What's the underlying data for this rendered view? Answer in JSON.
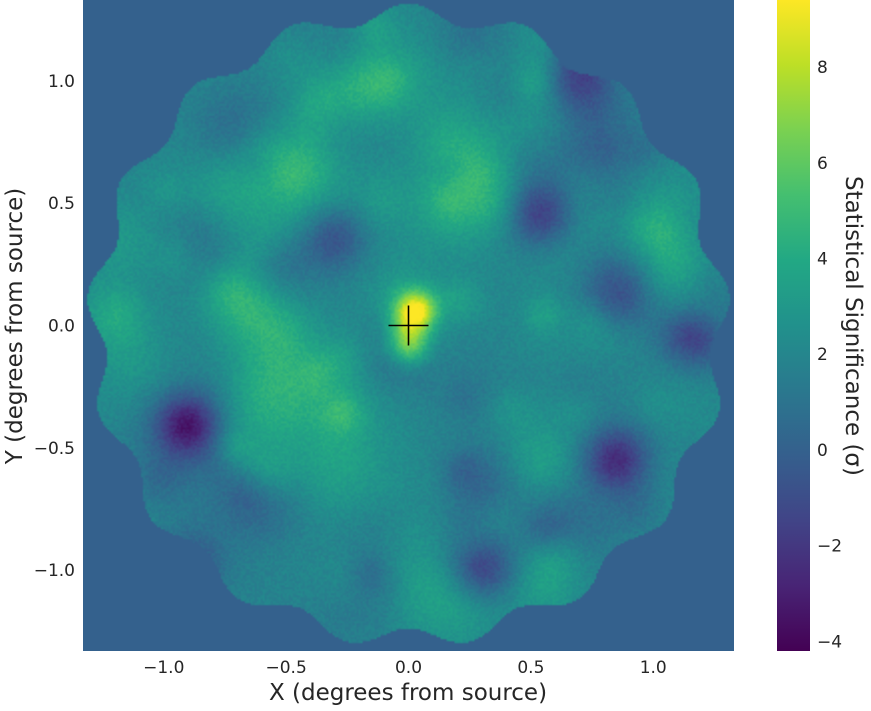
{
  "chart_data": {
    "type": "heatmap",
    "title": "",
    "xlabel": "X (degrees from source)",
    "ylabel": "Y (degrees from source)",
    "xlim": [
      -1.33,
      1.33
    ],
    "ylim": [
      -1.33,
      1.33
    ],
    "x_ticks": [
      -1.0,
      -0.5,
      0.0,
      0.5,
      1.0
    ],
    "x_tick_labels": [
      "−1.0",
      "−0.5",
      "0.0",
      "0.5",
      "1.0"
    ],
    "y_ticks": [
      1.0,
      0.5,
      0.0,
      -0.5,
      -1.0
    ],
    "y_tick_labels": [
      "1.0",
      "0.5",
      "0.0",
      "−0.5",
      "−1.0"
    ],
    "grid": false,
    "colormap": "viridis",
    "background_value": 0,
    "colorbar": {
      "label": "Statistical Significance (σ)",
      "range": [
        -4.2,
        9.4
      ],
      "ticks": [
        8,
        6,
        4,
        2,
        0,
        -2,
        -4
      ],
      "tick_labels": [
        "8",
        "6",
        "4",
        "2",
        "0",
        "−2",
        "−4"
      ]
    },
    "field_of_view": {
      "center": [
        0.0,
        0.0
      ],
      "radius_deg": 1.33,
      "typical_significance": 2
    },
    "source_marker": {
      "x": 0.0,
      "y": 0.0,
      "shape": "plus",
      "color": "#000000"
    },
    "features": [
      {
        "kind": "peak",
        "x": 0.03,
        "y": 0.06,
        "sigma": 9.2
      },
      {
        "kind": "peak",
        "x": 0.0,
        "y": -0.08,
        "sigma": 7.2
      },
      {
        "kind": "hotspot",
        "x": 1.0,
        "y": 0.4,
        "sigma": 4.5
      },
      {
        "kind": "hotspot",
        "x": -1.2,
        "y": 0.05,
        "sigma": 4.2
      },
      {
        "kind": "hotspot",
        "x": 0.6,
        "y": -0.95,
        "sigma": 4.2
      },
      {
        "kind": "hotspot",
        "x": -0.6,
        "y": -0.6,
        "sigma": 4.0
      },
      {
        "kind": "hotspot",
        "x": -0.35,
        "y": 0.9,
        "sigma": 3.8
      },
      {
        "kind": "hotspot",
        "x": 0.5,
        "y": 1.1,
        "sigma": 3.3
      },
      {
        "kind": "cold",
        "x": -0.9,
        "y": -0.4,
        "sigma": -4.0
      },
      {
        "kind": "cold",
        "x": 0.85,
        "y": -0.55,
        "sigma": -3.2
      },
      {
        "kind": "cold",
        "x": 0.55,
        "y": 0.45,
        "sigma": -2.4
      },
      {
        "kind": "cold",
        "x": 1.15,
        "y": -0.05,
        "sigma": -2.0
      },
      {
        "kind": "cold",
        "x": -0.3,
        "y": 0.35,
        "sigma": -1.5
      },
      {
        "kind": "cold",
        "x": 0.3,
        "y": -1.0,
        "sigma": -1.8
      },
      {
        "kind": "cold",
        "x": 0.7,
        "y": 1.05,
        "sigma": -1.5
      },
      {
        "kind": "cold",
        "x": -0.9,
        "y": -1.0,
        "sigma": -1.2
      }
    ]
  }
}
